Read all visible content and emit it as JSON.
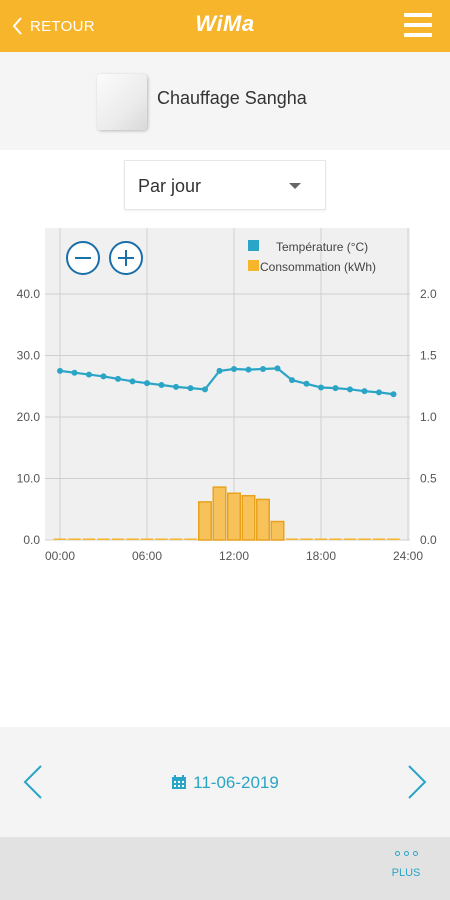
{
  "header": {
    "back_label": "RETOUR",
    "brand": "WiMa"
  },
  "device": {
    "name": "Chauffage Sangha"
  },
  "period_select": {
    "value": "Par jour"
  },
  "date_nav": {
    "date": "11-06-2019"
  },
  "footer": {
    "more_label": "PLUS"
  },
  "colors": {
    "accent": "#f7b52c",
    "temperature": "#2aa5c6",
    "consumption": "#f7b52c"
  },
  "chart_data": {
    "type": "line+bar",
    "x_ticks": [
      "00:00",
      "06:00",
      "12:00",
      "18:00",
      "24:00"
    ],
    "x_range_hours": [
      0,
      24
    ],
    "y_left": {
      "ticks": [
        "0.0",
        "10.0",
        "20.0",
        "30.0",
        "40.0"
      ],
      "range": [
        0,
        40
      ]
    },
    "y_right": {
      "ticks": [
        "0.0",
        "0.5",
        "1.0",
        "1.5",
        "2.0"
      ],
      "range": [
        0,
        2
      ]
    },
    "grid": true,
    "legend_position": "top-right",
    "series": [
      {
        "name": "Température (°C)",
        "type": "line",
        "axis": "left",
        "x": [
          0,
          1,
          2,
          3,
          4,
          5,
          6,
          7,
          8,
          9,
          10,
          11,
          12,
          13,
          14,
          15,
          16,
          17,
          18,
          19,
          20,
          21,
          22,
          23
        ],
        "values": [
          27.5,
          27.2,
          26.9,
          26.6,
          26.2,
          25.8,
          25.5,
          25.2,
          24.9,
          24.7,
          24.5,
          27.5,
          27.8,
          27.7,
          27.8,
          27.9,
          26.0,
          25.4,
          24.8,
          24.7,
          24.5,
          24.2,
          24.0,
          23.7
        ]
      },
      {
        "name": "Consommation (kWh)",
        "type": "bar",
        "axis": "right",
        "x": [
          0,
          1,
          2,
          3,
          4,
          5,
          6,
          7,
          8,
          9,
          10,
          11,
          12,
          13,
          14,
          15,
          16,
          17,
          18,
          19,
          20,
          21,
          22,
          23
        ],
        "values": [
          0,
          0,
          0,
          0,
          0,
          0,
          0,
          0,
          0,
          0,
          0.31,
          0.43,
          0.38,
          0.36,
          0.33,
          0.15,
          0,
          0,
          0,
          0,
          0,
          0,
          0,
          0
        ]
      }
    ]
  }
}
